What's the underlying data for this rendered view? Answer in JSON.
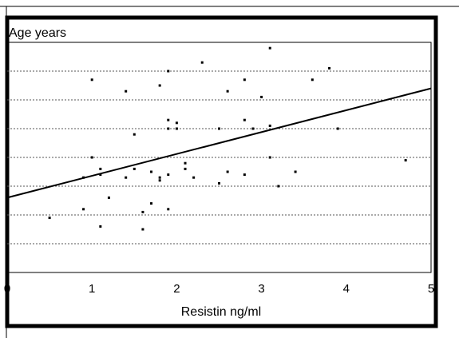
{
  "chart_data": {
    "type": "scatter",
    "title": "",
    "ylabel": "Age years",
    "xlabel": "Resistin ng/ml",
    "xlim": [
      0,
      5
    ],
    "ylim": [
      10,
      90
    ],
    "x_ticks": [
      0,
      1,
      2,
      3,
      4,
      5
    ],
    "y_ticks": [],
    "grid": "horizontal dotted",
    "series": [
      {
        "points": [
          {
            "x": 0.5,
            "y": 29
          },
          {
            "x": 0.9,
            "y": 43
          },
          {
            "x": 0.9,
            "y": 32
          },
          {
            "x": 1.0,
            "y": 77
          },
          {
            "x": 1.0,
            "y": 50
          },
          {
            "x": 1.1,
            "y": 46
          },
          {
            "x": 1.1,
            "y": 44
          },
          {
            "x": 1.1,
            "y": 26
          },
          {
            "x": 1.2,
            "y": 36
          },
          {
            "x": 1.4,
            "y": 73
          },
          {
            "x": 1.4,
            "y": 43
          },
          {
            "x": 1.5,
            "y": 58
          },
          {
            "x": 1.5,
            "y": 46
          },
          {
            "x": 1.6,
            "y": 31
          },
          {
            "x": 1.6,
            "y": 25
          },
          {
            "x": 1.7,
            "y": 45
          },
          {
            "x": 1.7,
            "y": 34
          },
          {
            "x": 1.8,
            "y": 75
          },
          {
            "x": 1.8,
            "y": 43
          },
          {
            "x": 1.8,
            "y": 42
          },
          {
            "x": 1.9,
            "y": 80
          },
          {
            "x": 1.9,
            "y": 63
          },
          {
            "x": 1.9,
            "y": 60
          },
          {
            "x": 1.9,
            "y": 44
          },
          {
            "x": 1.9,
            "y": 32
          },
          {
            "x": 2.0,
            "y": 62
          },
          {
            "x": 2.0,
            "y": 60
          },
          {
            "x": 2.1,
            "y": 48
          },
          {
            "x": 2.1,
            "y": 46
          },
          {
            "x": 2.2,
            "y": 43
          },
          {
            "x": 2.3,
            "y": 83
          },
          {
            "x": 2.5,
            "y": 60
          },
          {
            "x": 2.5,
            "y": 41
          },
          {
            "x": 2.6,
            "y": 73
          },
          {
            "x": 2.6,
            "y": 45
          },
          {
            "x": 2.8,
            "y": 77
          },
          {
            "x": 2.8,
            "y": 63
          },
          {
            "x": 2.8,
            "y": 44
          },
          {
            "x": 2.9,
            "y": 60
          },
          {
            "x": 3.0,
            "y": 71
          },
          {
            "x": 3.1,
            "y": 88
          },
          {
            "x": 3.1,
            "y": 61
          },
          {
            "x": 3.1,
            "y": 50
          },
          {
            "x": 3.2,
            "y": 40
          },
          {
            "x": 3.4,
            "y": 45
          },
          {
            "x": 3.6,
            "y": 77
          },
          {
            "x": 3.8,
            "y": 81
          },
          {
            "x": 3.9,
            "y": 60
          },
          {
            "x": 4.7,
            "y": 49
          }
        ]
      }
    ],
    "regression_line": {
      "x": [
        0,
        5
      ],
      "y": [
        36,
        74
      ]
    },
    "colors": {
      "points": "#000000",
      "line": "#000000",
      "grid": "#555555",
      "frame": "#000000"
    }
  }
}
